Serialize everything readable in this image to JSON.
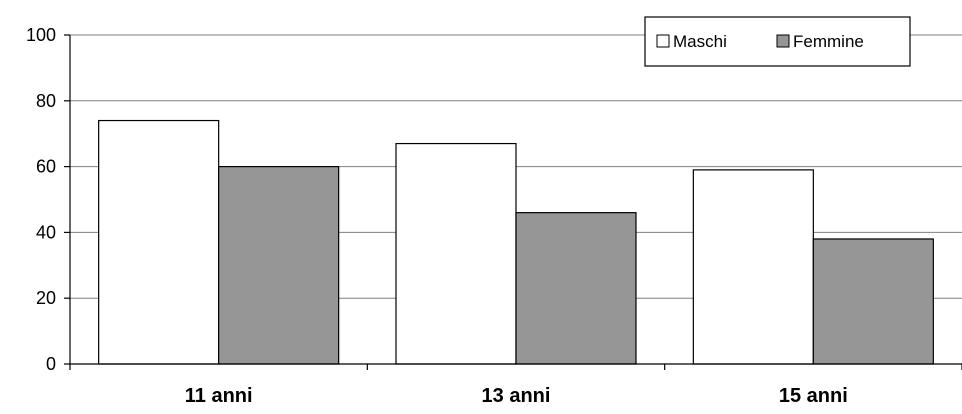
{
  "chart_data": {
    "type": "bar",
    "categories": [
      "11 anni",
      "13 anni",
      "15 anni"
    ],
    "series": [
      {
        "name": "Maschi",
        "values": [
          74,
          67,
          59
        ],
        "color": "#ffffff"
      },
      {
        "name": "Femmine",
        "values": [
          60,
          46,
          38
        ],
        "color": "#969696"
      }
    ],
    "ylim": [
      0,
      100
    ],
    "yticks": [
      0,
      20,
      40,
      60,
      80,
      100
    ],
    "grid": true,
    "legend_position": "top-right",
    "title": "",
    "xlabel": "",
    "ylabel": ""
  }
}
